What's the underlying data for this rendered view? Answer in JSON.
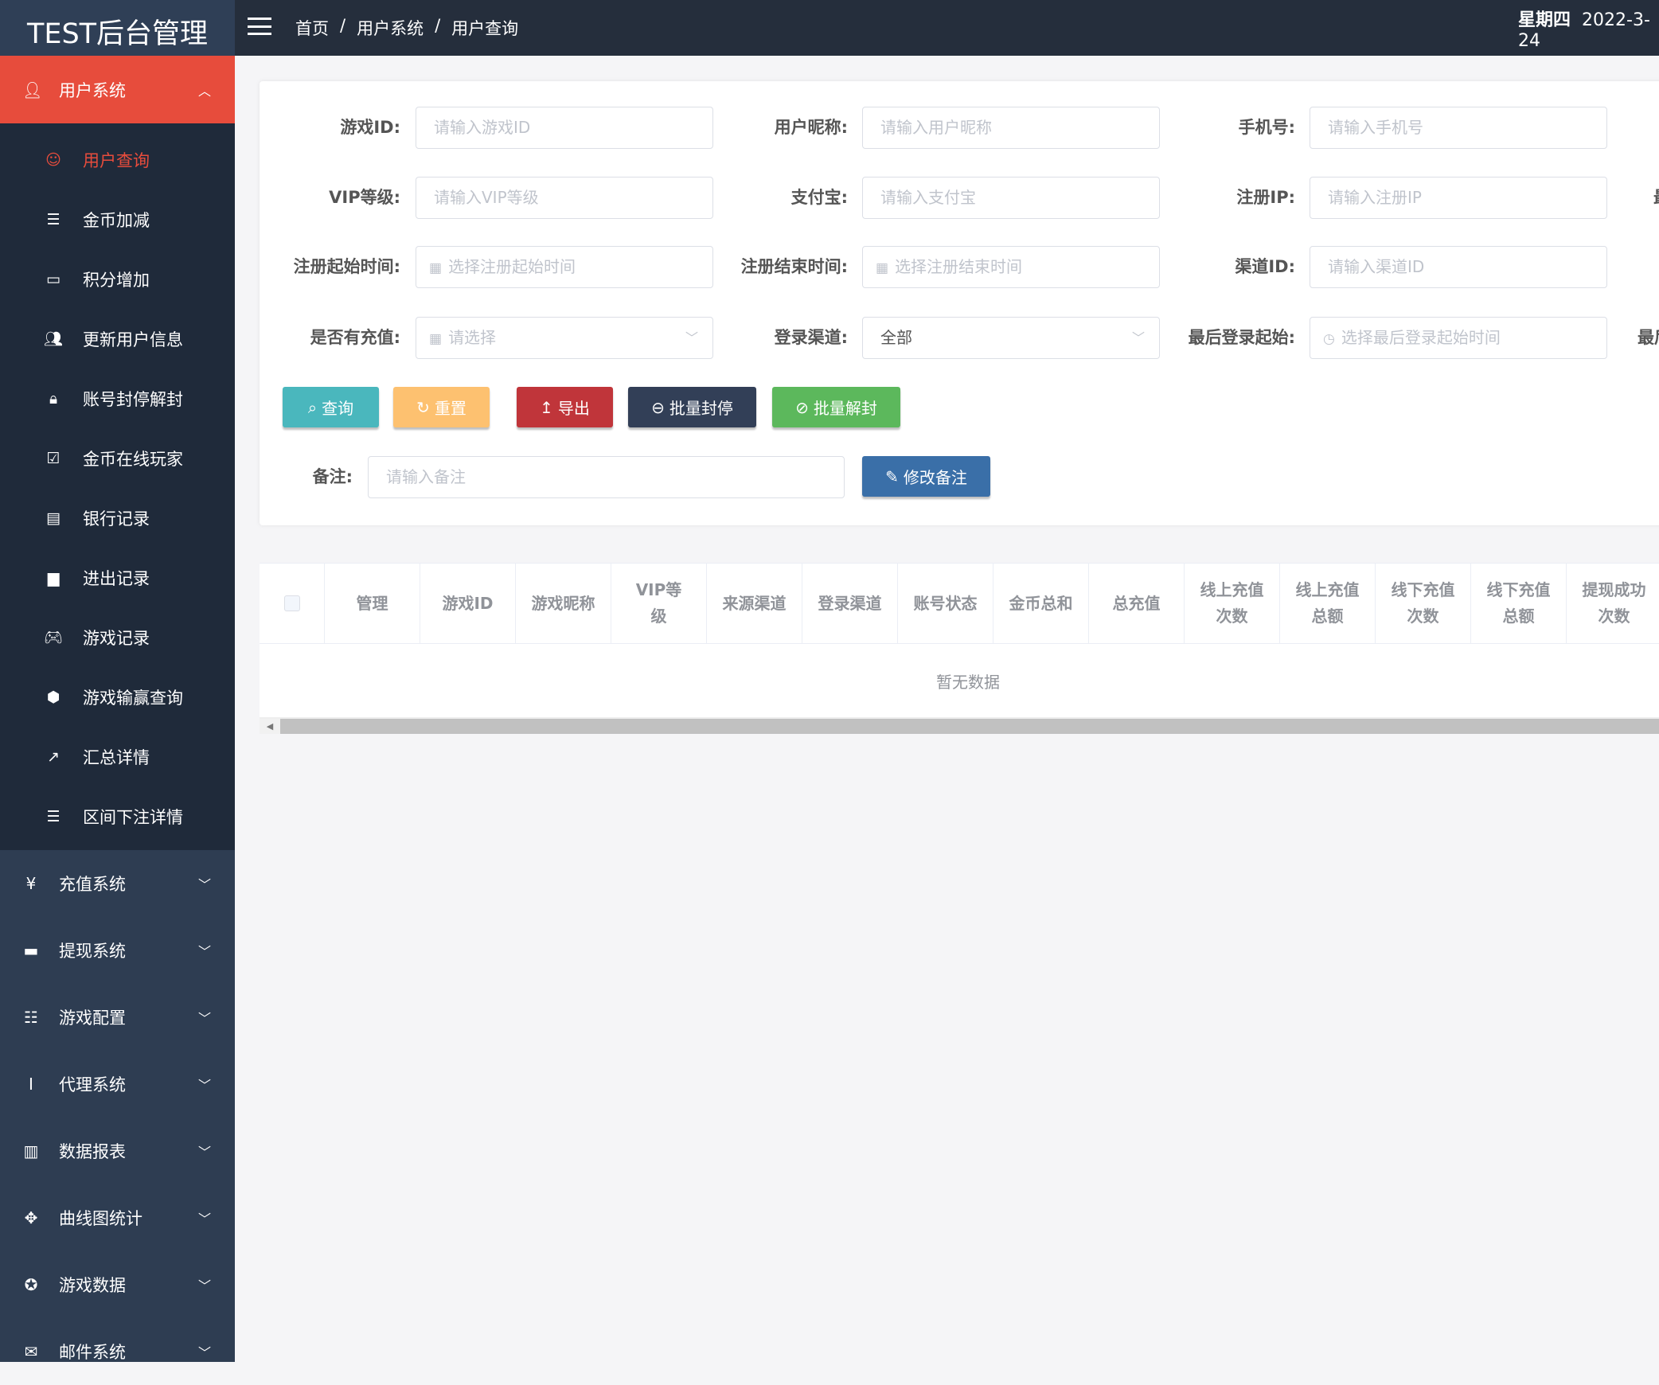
{
  "app": {
    "title": "TEST后台管理"
  },
  "header": {
    "breadcrumb": [
      "首页",
      "/",
      "用户系统",
      "/",
      "用户查询"
    ],
    "weekday": "星期四",
    "date": "2022-3-24"
  },
  "sidebar": {
    "active_group": {
      "label": "用户系统",
      "icon": "user-icon"
    },
    "sub_items": [
      {
        "label": "用户查询",
        "icon": "smiley-user-icon",
        "active": true
      },
      {
        "label": "金币加减",
        "icon": "stack-icon"
      },
      {
        "label": "积分增加",
        "icon": "comment-icon"
      },
      {
        "label": "更新用户信息",
        "icon": "users-icon"
      },
      {
        "label": "账号封停解封",
        "icon": "lock-icon"
      },
      {
        "label": "金币在线玩家",
        "icon": "check-square-icon"
      },
      {
        "label": "银行记录",
        "icon": "card-icon"
      },
      {
        "label": "进出记录",
        "icon": "file-icon"
      },
      {
        "label": "游戏记录",
        "icon": "gamepad-icon"
      },
      {
        "label": "游戏输赢查询",
        "icon": "cube-icon"
      },
      {
        "label": "汇总详情",
        "icon": "external-link-icon"
      },
      {
        "label": "区间下注详情",
        "icon": "stack-icon"
      }
    ],
    "groups": [
      {
        "label": "充值系统",
        "icon": "yen-icon"
      },
      {
        "label": "提现系统",
        "icon": "credit-card-icon"
      },
      {
        "label": "游戏配置",
        "icon": "list-icon"
      },
      {
        "label": "代理系统",
        "icon": "info-box-icon"
      },
      {
        "label": "数据报表",
        "icon": "book-icon"
      },
      {
        "label": "曲线图统计",
        "icon": "move-icon"
      },
      {
        "label": "游戏数据",
        "icon": "lifebuoy-icon"
      },
      {
        "label": "邮件系统",
        "icon": "envelope-icon"
      }
    ]
  },
  "form": {
    "fields": [
      {
        "label": "游戏ID:",
        "placeholder": "请输入游戏ID"
      },
      {
        "label": "用户昵称:",
        "placeholder": "请输入用户昵称"
      },
      {
        "label": "手机号:",
        "placeholder": "请输入手机号"
      },
      {
        "label": "VIP等级:",
        "placeholder": "请输入VIP等级"
      },
      {
        "label": "支付宝:",
        "placeholder": "请输入支付宝"
      },
      {
        "label": "注册IP:",
        "placeholder": "请输入注册IP"
      },
      {
        "label": "注册起始时间:",
        "placeholder": "选择注册起始时间"
      },
      {
        "label": "注册结束时间:",
        "placeholder": "选择注册结束时间"
      },
      {
        "label": "渠道ID:",
        "placeholder": "请输入渠道ID"
      },
      {
        "label": "是否有充值:",
        "placeholder": "请选择"
      },
      {
        "label": "登录渠道:",
        "value": "全部"
      },
      {
        "label": "最后登录起始:",
        "placeholder": "选择最后登录起始时间"
      }
    ],
    "cut_labels": [
      "最",
      "最后"
    ],
    "buttons": {
      "query": "查询",
      "reset": "重置",
      "export": "导出",
      "ban": "批量封停",
      "unban": "批量解封"
    },
    "remark": {
      "label": "备注:",
      "placeholder": "请输入备注",
      "button": "修改备注"
    }
  },
  "colors": {
    "query": "#4ab7bd",
    "reset": "#fdc170",
    "export": "#c0353a",
    "ban": "#323f57",
    "unban": "#5cb85c",
    "remark": "#3a6fa8",
    "active": "#e74c3c"
  },
  "table": {
    "columns": [
      "管理",
      "游戏ID",
      "游戏昵称",
      "VIP等级",
      "来源渠道",
      "登录渠道",
      "账号状态",
      "金币总和",
      "总充值",
      "线上充值次数",
      "线上充值总额",
      "线下充值次数",
      "线下充值总额",
      "提现成功次数"
    ],
    "empty": "暂无数据"
  }
}
